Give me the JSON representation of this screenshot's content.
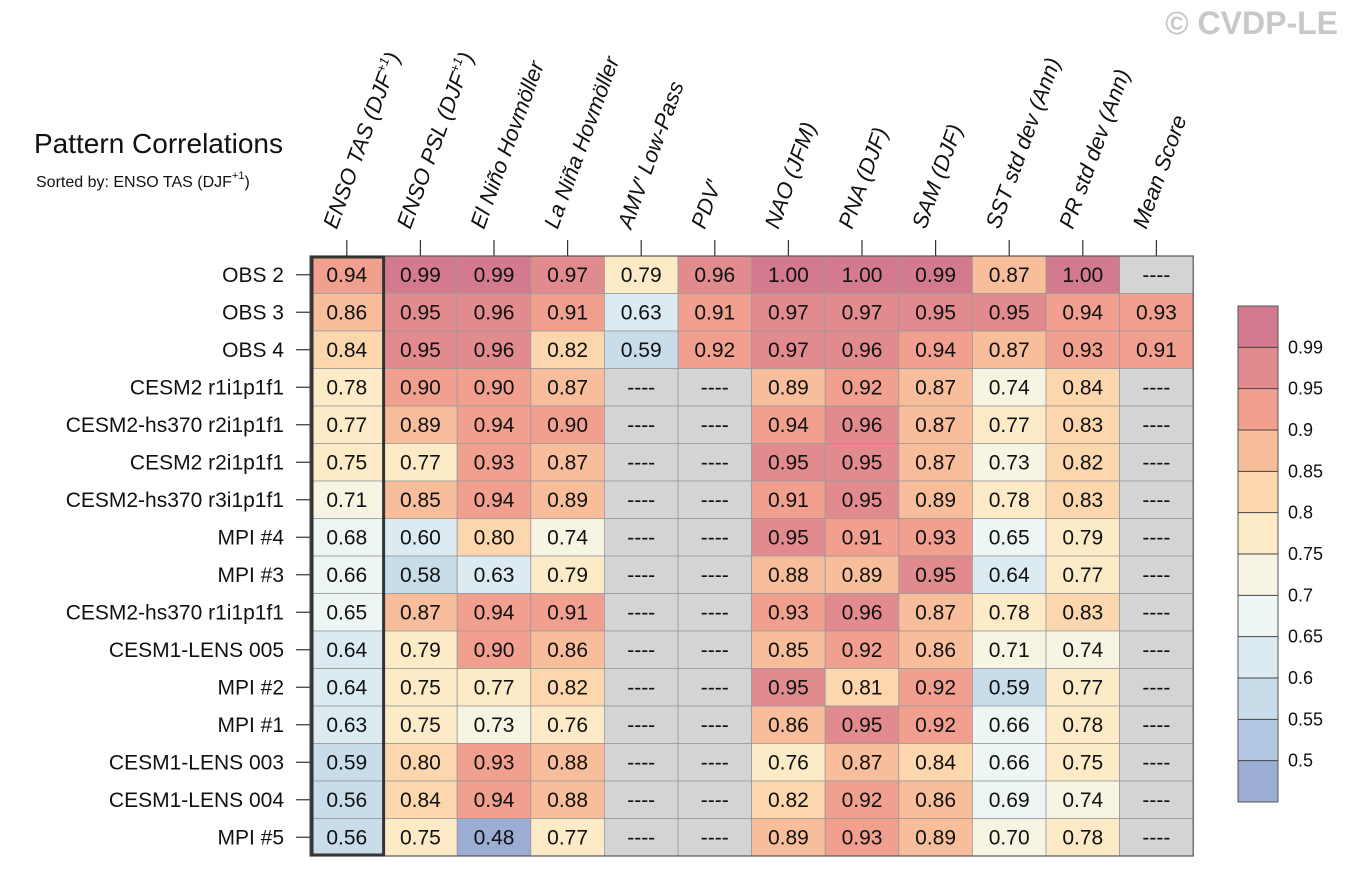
{
  "watermark": "© CVDP-LE",
  "chart_data": {
    "type": "heatmap",
    "title": "Pattern Correlations",
    "subtitle": {
      "prefix": "Sorted by: ENSO TAS (DJF",
      "sup": "+1",
      "suffix": ")"
    },
    "columns": [
      {
        "label": "ENSO TAS (DJF",
        "sup": "+1",
        "suffix": ")"
      },
      {
        "label": "ENSO PSL (DJF",
        "sup": "+1",
        "suffix": ")"
      },
      {
        "label": "El Niño Hovmöller"
      },
      {
        "label": "La Niña Hovmöller"
      },
      {
        "label": "AMV′ Low-Pass"
      },
      {
        "label": "PDV′"
      },
      {
        "label": "NAO (JFM)"
      },
      {
        "label": "PNA (DJF)"
      },
      {
        "label": "SAM (DJF)"
      },
      {
        "label": "SST std dev (Ann)"
      },
      {
        "label": "PR std dev (Ann)"
      },
      {
        "label": "Mean Score"
      }
    ],
    "rows": [
      "OBS 2",
      "OBS 3",
      "OBS 4",
      "CESM2 r1i1p1f1",
      "CESM2-hs370 r2i1p1f1",
      "CESM2 r2i1p1f1",
      "CESM2-hs370 r3i1p1f1",
      "MPI #4",
      "MPI #3",
      "CESM2-hs370 r1i1p1f1",
      "CESM1-LENS 005",
      "MPI #2",
      "MPI #1",
      "CESM1-LENS 003",
      "CESM1-LENS 004",
      "MPI #5"
    ],
    "values": [
      [
        0.94,
        0.99,
        0.99,
        0.97,
        0.79,
        0.96,
        1.0,
        1.0,
        0.99,
        0.87,
        1.0,
        null
      ],
      [
        0.86,
        0.95,
        0.96,
        0.91,
        0.63,
        0.91,
        0.97,
        0.97,
        0.95,
        0.95,
        0.94,
        0.93
      ],
      [
        0.84,
        0.95,
        0.96,
        0.82,
        0.59,
        0.92,
        0.97,
        0.96,
        0.94,
        0.87,
        0.93,
        0.91
      ],
      [
        0.78,
        0.9,
        0.9,
        0.87,
        null,
        null,
        0.89,
        0.92,
        0.87,
        0.74,
        0.84,
        null
      ],
      [
        0.77,
        0.89,
        0.94,
        0.9,
        null,
        null,
        0.94,
        0.96,
        0.87,
        0.77,
        0.83,
        null
      ],
      [
        0.75,
        0.77,
        0.93,
        0.87,
        null,
        null,
        0.95,
        0.95,
        0.87,
        0.73,
        0.82,
        null
      ],
      [
        0.71,
        0.85,
        0.94,
        0.89,
        null,
        null,
        0.91,
        0.95,
        0.89,
        0.78,
        0.83,
        null
      ],
      [
        0.68,
        0.6,
        0.8,
        0.74,
        null,
        null,
        0.95,
        0.91,
        0.93,
        0.65,
        0.79,
        null
      ],
      [
        0.66,
        0.58,
        0.63,
        0.79,
        null,
        null,
        0.88,
        0.89,
        0.95,
        0.64,
        0.77,
        null
      ],
      [
        0.65,
        0.87,
        0.94,
        0.91,
        null,
        null,
        0.93,
        0.96,
        0.87,
        0.78,
        0.83,
        null
      ],
      [
        0.64,
        0.79,
        0.9,
        0.86,
        null,
        null,
        0.85,
        0.92,
        0.86,
        0.71,
        0.74,
        null
      ],
      [
        0.64,
        0.75,
        0.77,
        0.82,
        null,
        null,
        0.95,
        0.81,
        0.92,
        0.59,
        0.77,
        null
      ],
      [
        0.63,
        0.75,
        0.73,
        0.76,
        null,
        null,
        0.86,
        0.95,
        0.92,
        0.66,
        0.78,
        null
      ],
      [
        0.59,
        0.8,
        0.93,
        0.88,
        null,
        null,
        0.76,
        0.87,
        0.84,
        0.66,
        0.75,
        null
      ],
      [
        0.56,
        0.84,
        0.94,
        0.88,
        null,
        null,
        0.82,
        0.92,
        0.86,
        0.69,
        0.74,
        null
      ],
      [
        0.56,
        0.75,
        0.48,
        0.77,
        null,
        null,
        0.89,
        0.93,
        0.89,
        0.7,
        0.78,
        null
      ]
    ],
    "missing_label": "----",
    "missing_color": "#d4d4d4",
    "highlight_column": 0,
    "colorbar": {
      "levels": [
        0.5,
        0.55,
        0.6,
        0.65,
        0.7,
        0.75,
        0.8,
        0.85,
        0.9,
        0.95,
        0.99
      ],
      "tick_labels": [
        "0.5",
        "0.55",
        "0.6",
        "0.65",
        "0.7",
        "0.75",
        "0.8",
        "0.85",
        "0.9",
        "0.95",
        "0.99"
      ],
      "colors": [
        "#9cadd4",
        "#b2c7e1",
        "#c8dcea",
        "#dbebf1",
        "#eef5f5",
        "#f7f4e4",
        "#fdebc8",
        "#fcd6ad",
        "#f8bd9b",
        "#f1a090",
        "#e18b8e",
        "#d37a8e"
      ]
    }
  }
}
